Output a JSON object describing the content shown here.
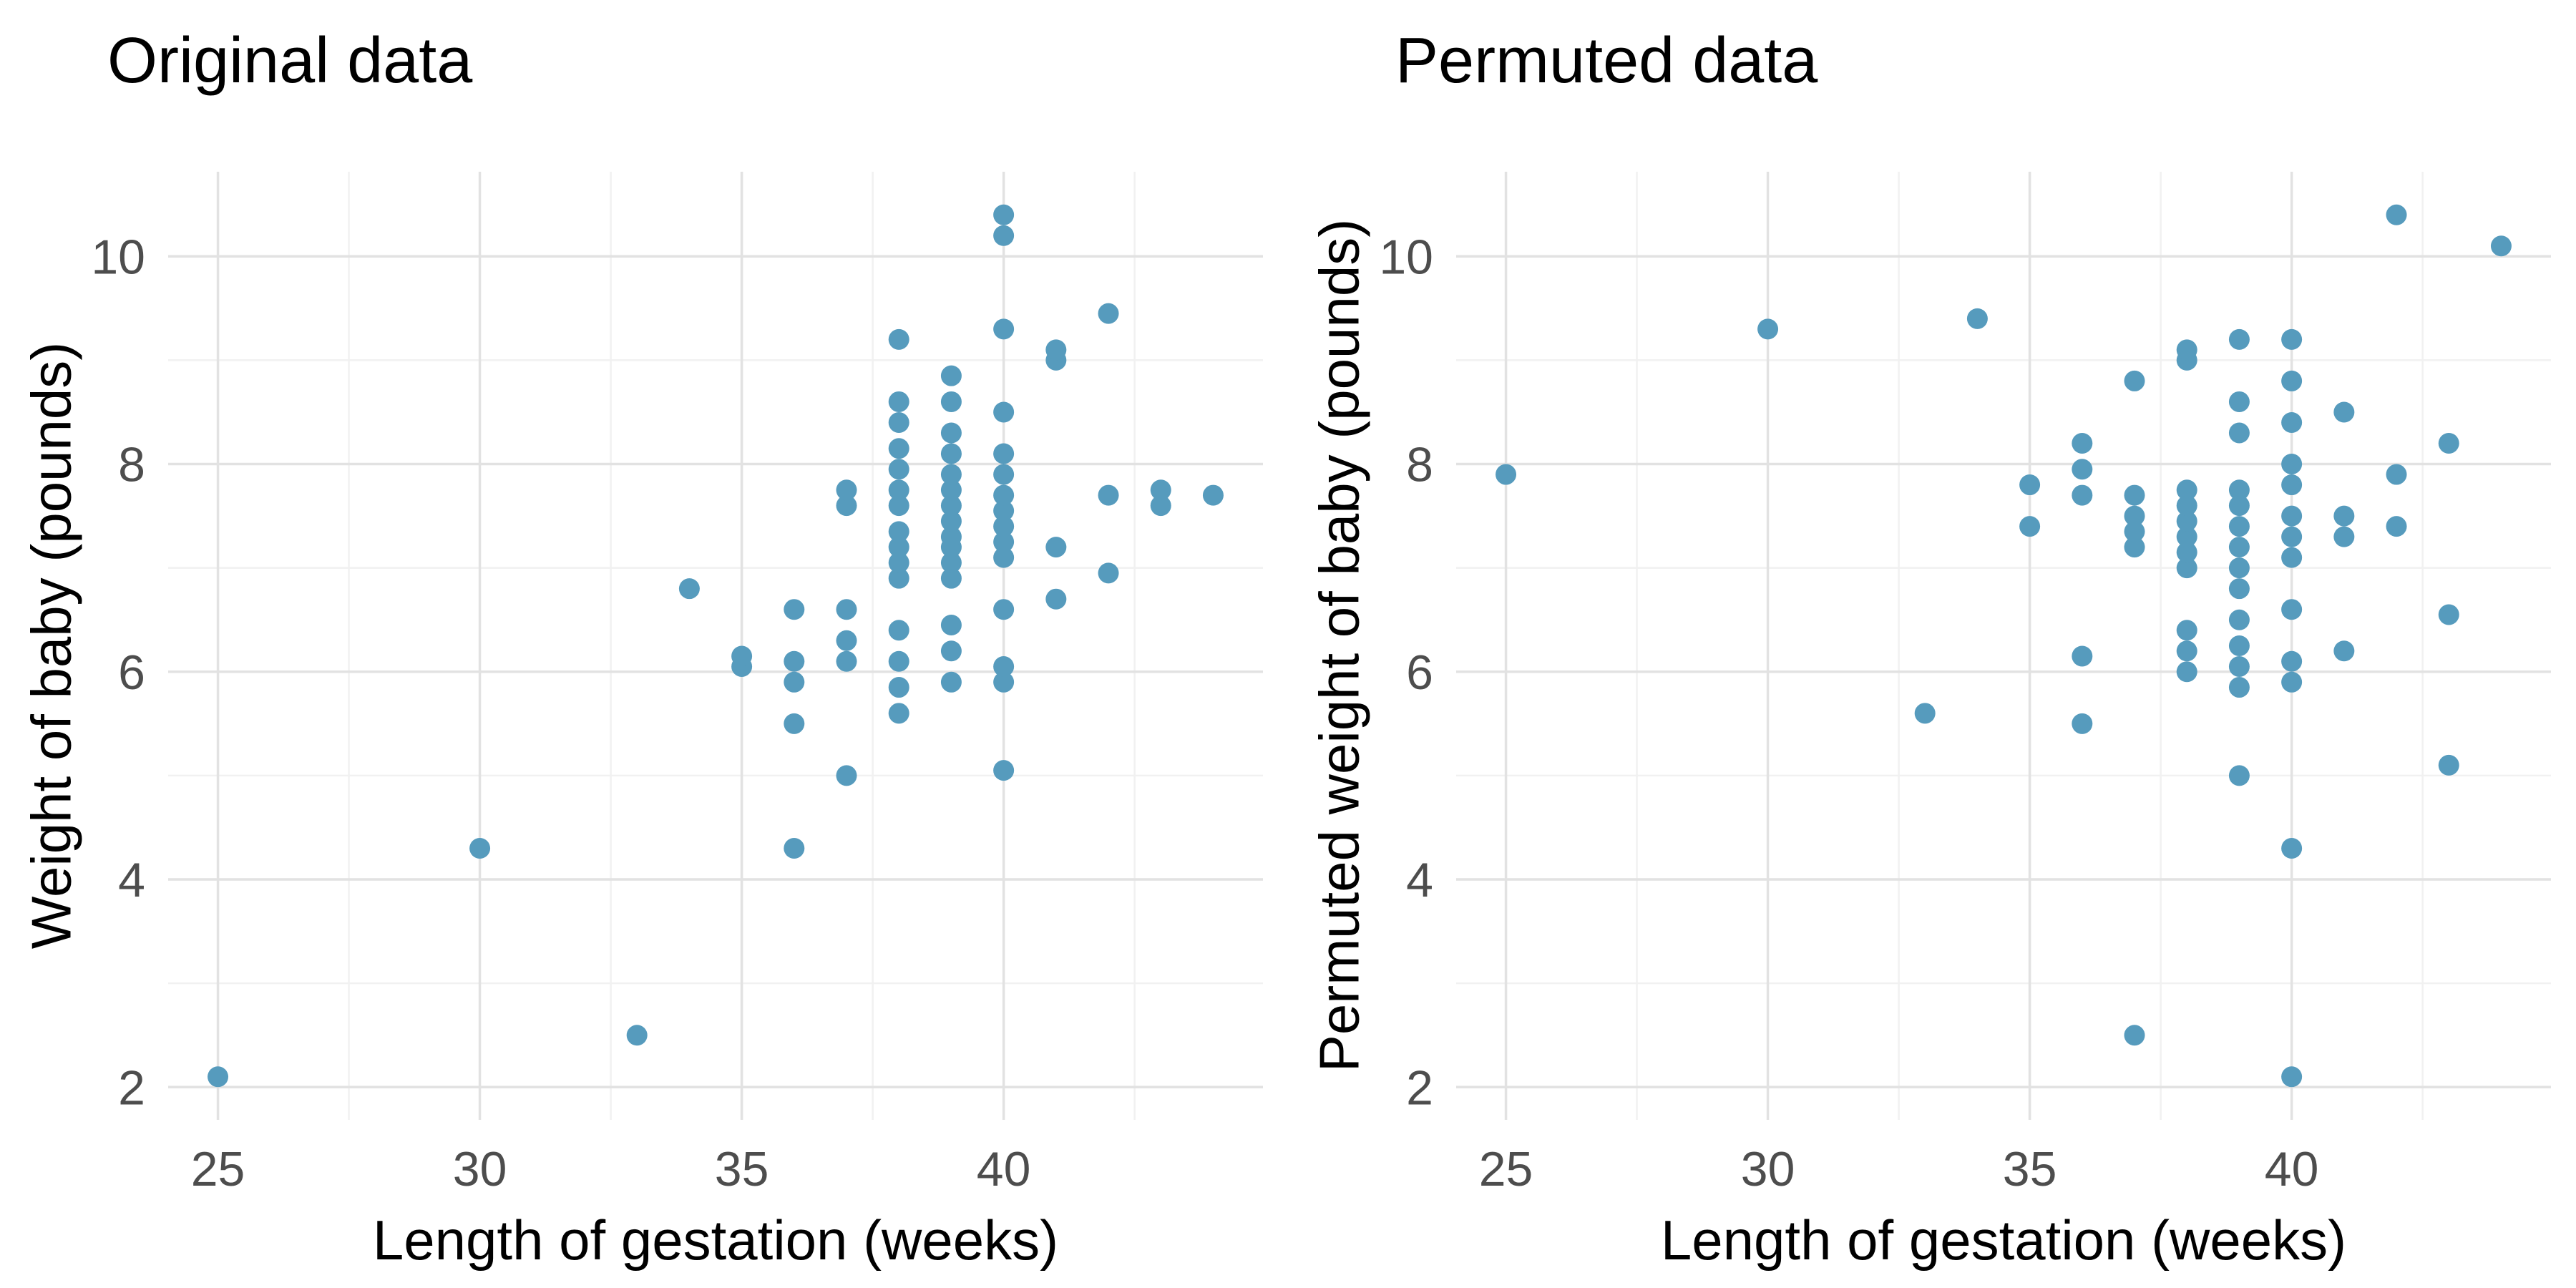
{
  "figure": {
    "background": "#FFFFFF",
    "point_color": "#569BBD",
    "grid_major_color": "#E2E2E2",
    "grid_minor_color": "#F1F1F1",
    "tick_label_color": "#4D4D4D",
    "text_color": "#000000"
  },
  "chart_data": [
    {
      "type": "scatter",
      "title": "Original data",
      "xlabel": "Length of gestation (weeks)",
      "ylabel": "Weight of baby (pounds)",
      "xlim": [
        24.05,
        44.95
      ],
      "ylim": [
        1.685,
        10.815
      ],
      "xticks": [
        25,
        30,
        35,
        40
      ],
      "yticks": [
        2,
        4,
        6,
        8,
        10
      ],
      "xminor": [
        27.5,
        32.5,
        37.5,
        42.5
      ],
      "yminor": [
        3,
        5,
        7,
        9
      ],
      "grid": true,
      "legend": "none",
      "points": [
        [
          25,
          2.1
        ],
        [
          30,
          4.3
        ],
        [
          33,
          2.5
        ],
        [
          34,
          6.8
        ],
        [
          35,
          6.05
        ],
        [
          35,
          6.15
        ],
        [
          36,
          4.3
        ],
        [
          36,
          5.5
        ],
        [
          36,
          5.9
        ],
        [
          36,
          6.1
        ],
        [
          36,
          6.6
        ],
        [
          37,
          5.0
        ],
        [
          37,
          6.1
        ],
        [
          37,
          6.3
        ],
        [
          37,
          6.6
        ],
        [
          37,
          7.6
        ],
        [
          37,
          7.75
        ],
        [
          38,
          5.6
        ],
        [
          38,
          5.85
        ],
        [
          38,
          6.1
        ],
        [
          38,
          6.4
        ],
        [
          38,
          6.9
        ],
        [
          38,
          7.05
        ],
        [
          38,
          7.2
        ],
        [
          38,
          7.35
        ],
        [
          38,
          7.6
        ],
        [
          38,
          7.75
        ],
        [
          38,
          7.95
        ],
        [
          38,
          8.15
        ],
        [
          38,
          8.4
        ],
        [
          38,
          8.6
        ],
        [
          38,
          9.2
        ],
        [
          39,
          5.9
        ],
        [
          39,
          6.2
        ],
        [
          39,
          6.45
        ],
        [
          39,
          6.9
        ],
        [
          39,
          7.05
        ],
        [
          39,
          7.2
        ],
        [
          39,
          7.3
        ],
        [
          39,
          7.45
        ],
        [
          39,
          7.6
        ],
        [
          39,
          7.75
        ],
        [
          39,
          7.9
        ],
        [
          39,
          8.1
        ],
        [
          39,
          8.3
        ],
        [
          39,
          8.6
        ],
        [
          39,
          8.85
        ],
        [
          40,
          5.05
        ],
        [
          40,
          5.9
        ],
        [
          40,
          6.05
        ],
        [
          40,
          6.6
        ],
        [
          40,
          7.1
        ],
        [
          40,
          7.25
        ],
        [
          40,
          7.4
        ],
        [
          40,
          7.55
        ],
        [
          40,
          7.7
        ],
        [
          40,
          7.9
        ],
        [
          40,
          8.1
        ],
        [
          40,
          8.5
        ],
        [
          40,
          9.3
        ],
        [
          40,
          10.2
        ],
        [
          40,
          10.4
        ],
        [
          41,
          6.7
        ],
        [
          41,
          7.2
        ],
        [
          41,
          9.0
        ],
        [
          41,
          9.1
        ],
        [
          42,
          6.95
        ],
        [
          42,
          7.7
        ],
        [
          42,
          9.45
        ],
        [
          43,
          7.6
        ],
        [
          43,
          7.75
        ],
        [
          44,
          7.7
        ]
      ]
    },
    {
      "type": "scatter",
      "title": "Permuted data",
      "xlabel": "Length of gestation (weeks)",
      "ylabel": "Permuted weight of baby (pounds)",
      "xlim": [
        24.05,
        44.95
      ],
      "ylim": [
        1.685,
        10.815
      ],
      "xticks": [
        25,
        30,
        35,
        40
      ],
      "yticks": [
        2,
        4,
        6,
        8,
        10
      ],
      "xminor": [
        27.5,
        32.5,
        37.5,
        42.5
      ],
      "yminor": [
        3,
        5,
        7,
        9
      ],
      "grid": true,
      "legend": "none",
      "points": [
        [
          25,
          7.9
        ],
        [
          30,
          9.3
        ],
        [
          33,
          5.6
        ],
        [
          34,
          9.4
        ],
        [
          35,
          7.4
        ],
        [
          35,
          7.8
        ],
        [
          36,
          5.5
        ],
        [
          36,
          6.15
        ],
        [
          36,
          7.7
        ],
        [
          36,
          7.95
        ],
        [
          36,
          8.2
        ],
        [
          37,
          2.5
        ],
        [
          37,
          7.2
        ],
        [
          37,
          7.35
        ],
        [
          37,
          7.5
        ],
        [
          37,
          7.7
        ],
        [
          37,
          8.8
        ],
        [
          38,
          6.0
        ],
        [
          38,
          6.2
        ],
        [
          38,
          6.4
        ],
        [
          38,
          7.0
        ],
        [
          38,
          7.15
        ],
        [
          38,
          7.3
        ],
        [
          38,
          7.45
        ],
        [
          38,
          7.6
        ],
        [
          38,
          7.75
        ],
        [
          38,
          9.0
        ],
        [
          38,
          9.1
        ],
        [
          39,
          5.0
        ],
        [
          39,
          5.85
        ],
        [
          39,
          6.05
        ],
        [
          39,
          6.25
        ],
        [
          39,
          6.5
        ],
        [
          39,
          6.8
        ],
        [
          39,
          7.0
        ],
        [
          39,
          7.2
        ],
        [
          39,
          7.4
        ],
        [
          39,
          7.6
        ],
        [
          39,
          7.75
        ],
        [
          39,
          8.3
        ],
        [
          39,
          8.6
        ],
        [
          39,
          9.2
        ],
        [
          40,
          2.1
        ],
        [
          40,
          4.3
        ],
        [
          40,
          5.9
        ],
        [
          40,
          6.1
        ],
        [
          40,
          6.6
        ],
        [
          40,
          7.1
        ],
        [
          40,
          7.3
        ],
        [
          40,
          7.5
        ],
        [
          40,
          7.8
        ],
        [
          40,
          8.0
        ],
        [
          40,
          8.4
        ],
        [
          40,
          8.8
        ],
        [
          40,
          9.2
        ],
        [
          41,
          6.2
        ],
        [
          41,
          7.3
        ],
        [
          41,
          7.5
        ],
        [
          41,
          8.5
        ],
        [
          42,
          7.4
        ],
        [
          42,
          7.9
        ],
        [
          42,
          10.4
        ],
        [
          43,
          5.1
        ],
        [
          43,
          6.55
        ],
        [
          43,
          8.2
        ],
        [
          44,
          10.1
        ]
      ]
    }
  ]
}
